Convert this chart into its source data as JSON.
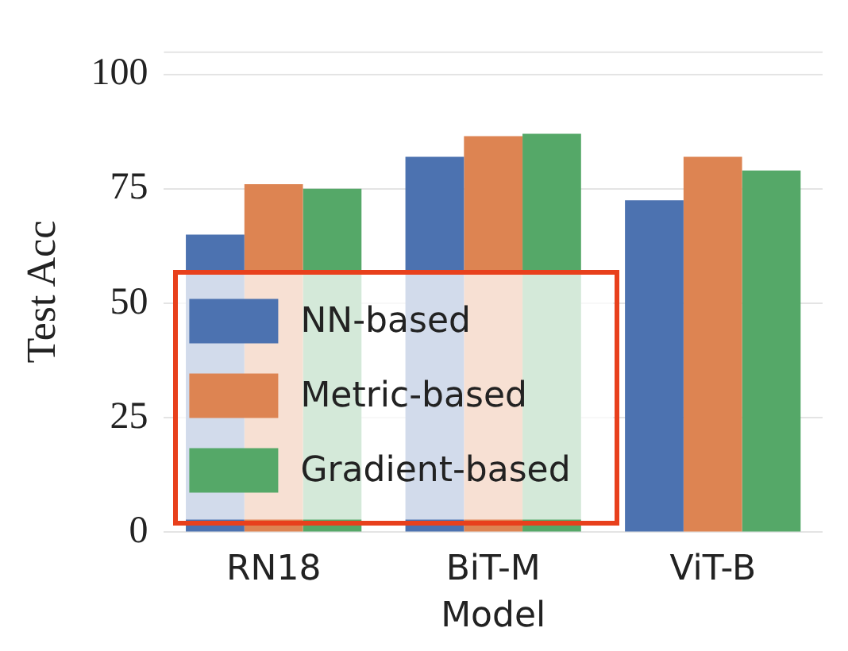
{
  "chart_data": {
    "type": "bar",
    "xlabel": "Model",
    "ylabel": "Test Acc",
    "categories": [
      "RN18",
      "BiT-M",
      "ViT-B"
    ],
    "series": [
      {
        "name": "NN-based",
        "color": "#4c72b0",
        "values": [
          65,
          82,
          72.5
        ]
      },
      {
        "name": "Metric-based",
        "color": "#dd8452",
        "values": [
          76,
          86.5,
          82
        ]
      },
      {
        "name": "Gradient-based",
        "color": "#55a868",
        "values": [
          75,
          87,
          79
        ]
      }
    ],
    "ylim": [
      0,
      105
    ],
    "yticks": [
      0,
      25,
      50,
      75,
      100
    ],
    "grid": "y",
    "legend": "bottom left"
  }
}
